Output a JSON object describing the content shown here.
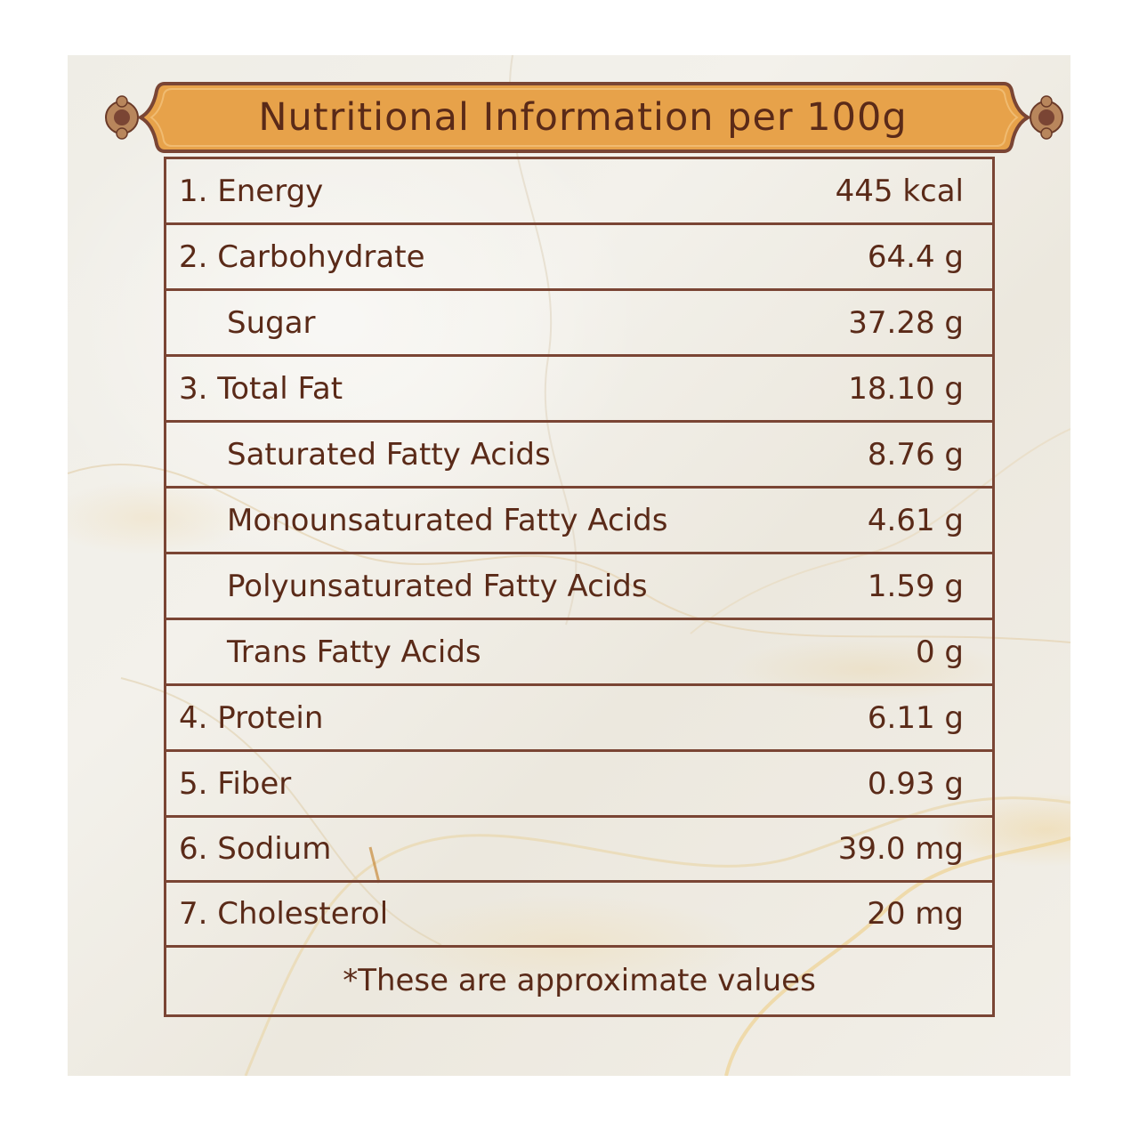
{
  "title": "Nutritional Information per 100g",
  "colors": {
    "banner_fill": "#e7a24a",
    "banner_border": "#7a4534",
    "text": "#5a2a18",
    "table_border": "#7a4534",
    "background": "#efede6"
  },
  "rows": [
    {
      "label": "1. Energy",
      "value": "445 kcal",
      "sub": false
    },
    {
      "label": "2. Carbohydrate",
      "value": "64.4 g",
      "sub": false
    },
    {
      "label": "Sugar",
      "value": "37.28 g",
      "sub": true
    },
    {
      "label": "3. Total Fat",
      "value": "18.10 g",
      "sub": false
    },
    {
      "label": "Saturated Fatty Acids",
      "value": "8.76 g",
      "sub": true
    },
    {
      "label": "Monounsaturated Fatty Acids",
      "value": "4.61 g",
      "sub": true
    },
    {
      "label": "Polyunsaturated Fatty Acids",
      "value": "1.59 g",
      "sub": true
    },
    {
      "label": "Trans Fatty Acids",
      "value": "0 g",
      "sub": true
    },
    {
      "label": "4. Protein",
      "value": "6.11 g",
      "sub": false
    },
    {
      "label": "5. Fiber",
      "value": "0.93 g",
      "sub": false
    },
    {
      "label": "6. Sodium",
      "value": "39.0 mg",
      "sub": false
    },
    {
      "label": "7. Cholesterol",
      "value": "20 mg",
      "sub": false
    }
  ],
  "footnote": "*These are approximate values"
}
